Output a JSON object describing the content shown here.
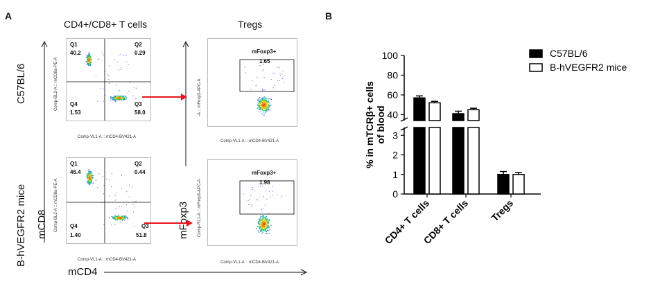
{
  "panel_a": {
    "letter": "A",
    "col_title_left": "CD4+/CD8+ T cells",
    "col_title_right": "Tregs",
    "row_label_top": "C57BL/6",
    "row_label_bottom": "B-hVEGFR2 mice",
    "axis_y_left": "mCD8",
    "axis_x_left": "mCD4",
    "axis_y_right": "mFoxp3",
    "plots": {
      "top_left": {
        "y_param": "Comp-BL2-A :: mCD8a-PE-A",
        "x_param": "Comp-VL1-A :: mCD4-BV421-A",
        "q1_label": "Q1",
        "q1_value": "40.2",
        "q2_label": "Q2",
        "q2_value": "0.29",
        "q3_label": "Q3",
        "q3_value": "58.0",
        "q4_label": "Q4",
        "q4_value": "1.53"
      },
      "bottom_left": {
        "y_param": "Comp-BL2-A :: mCD8a-PE-A",
        "x_param": "Comp-VL1-A :: mCD4-BV421-A",
        "q1_label": "Q1",
        "q1_value": "46.4",
        "q2_label": "Q2",
        "q2_value": "0.44",
        "q3_label": "Q3",
        "q3_value": "51.8",
        "q4_label": "Q4",
        "q4_value": "1.40"
      },
      "top_right": {
        "y_param": "-A :: mFoxp3-APC-A",
        "x_param": "Comp-VL1-A :: mCD4-BV421-A",
        "gate_label": "mFoxp3+",
        "gate_value": "1.65"
      },
      "bottom_right": {
        "y_param": "Comp-RL1-A :: mFoxp3-APC-A",
        "x_param": "Comp-VL1-A :: mCD4-BV421-A",
        "gate_label": "mFoxp3+",
        "gate_value": "1.98"
      }
    },
    "arrow_color": "#e8141a"
  },
  "panel_b": {
    "letter": "B"
  },
  "chart_data": {
    "type": "bar",
    "ylabel_line1": "% in mTCRβ+ cells",
    "ylabel_line2": "of blood",
    "categories": [
      "CD4+ T cells",
      "CD8+ T cells",
      "Tregs"
    ],
    "series": [
      {
        "name": "C57BL/6",
        "color": "#000000",
        "values": [
          57,
          41,
          1.0
        ],
        "errors": [
          2,
          2.5,
          0.15
        ]
      },
      {
        "name": "B-hVEGFR2 mice",
        "color": "#ffffff",
        "values": [
          52,
          45,
          1.0
        ],
        "errors": [
          1.5,
          1.5,
          0.1
        ]
      }
    ],
    "y_break": true,
    "lower_ticks": [
      "0",
      "1",
      "2",
      "3"
    ],
    "upper_ticks": [
      "40",
      "60",
      "80",
      "100"
    ],
    "ylim_lower": [
      0,
      3.4
    ],
    "ylim_upper": [
      34,
      100
    ],
    "legend_position": "top-right"
  }
}
